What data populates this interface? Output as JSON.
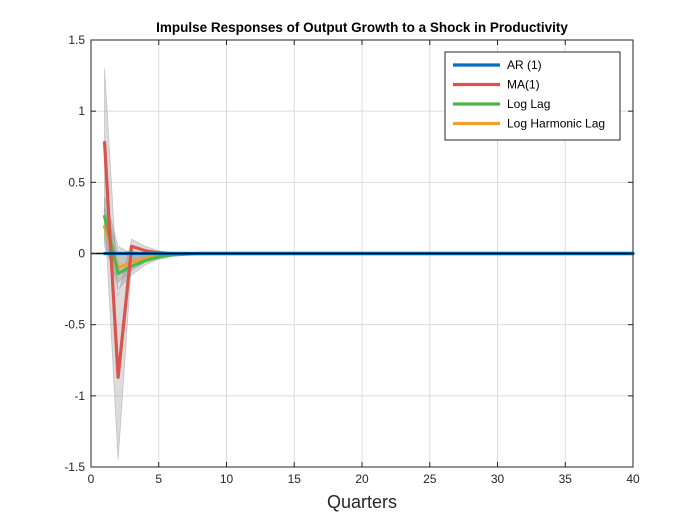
{
  "chart_data": {
    "type": "line",
    "title": "Impulse Responses of Output Growth to a Shock in Productivity",
    "xlabel": "Quarters",
    "ylabel": "",
    "xlim": [
      0,
      40
    ],
    "ylim": [
      -1.5,
      1.5
    ],
    "xticks": [
      "0",
      "5",
      "10",
      "15",
      "20",
      "25",
      "30",
      "35",
      "40"
    ],
    "yticks": [
      "1.5",
      "1",
      "0.5",
      "0",
      "-0.5",
      "-1",
      "-1.5"
    ],
    "grid": true,
    "legend_position": "top-right",
    "zero_line": true,
    "series": [
      {
        "name": "AR (1)",
        "color": "#0072BD",
        "x": [
          1,
          2,
          3,
          4,
          5,
          6,
          7,
          8,
          40
        ],
        "values": [
          0.0,
          0.0,
          0.0,
          0.0,
          0.0,
          0.0,
          0.0,
          0.0,
          0.0
        ],
        "band_lower": [
          0.0,
          0.0,
          0.0,
          0.0,
          0.0,
          0.0,
          0.0,
          0.0,
          0.0
        ],
        "band_upper": [
          0.0,
          0.0,
          0.0,
          0.0,
          0.0,
          0.0,
          0.0,
          0.0,
          0.0
        ]
      },
      {
        "name": "MA(1)",
        "color": "#D9534F",
        "x": [
          1,
          2,
          3,
          4,
          5,
          6,
          7,
          8,
          40
        ],
        "values": [
          0.78,
          -0.87,
          0.05,
          0.02,
          0.005,
          0.0,
          0.0,
          0.0,
          0.0
        ],
        "band_lower": [
          0.3,
          -1.45,
          -0.05,
          -0.02,
          -0.01,
          0.0,
          0.0,
          0.0,
          0.0
        ],
        "band_upper": [
          1.3,
          -0.3,
          0.1,
          0.05,
          0.02,
          0.0,
          0.0,
          0.0,
          0.0
        ]
      },
      {
        "name": "Log Lag",
        "color": "#4DB849",
        "x": [
          1,
          2,
          3,
          4,
          5,
          6,
          7,
          8,
          40
        ],
        "values": [
          0.26,
          -0.14,
          -0.09,
          -0.05,
          -0.025,
          -0.01,
          -0.005,
          0.0,
          0.0
        ],
        "band_lower": [
          0.1,
          -0.25,
          -0.15,
          -0.08,
          -0.04,
          -0.02,
          -0.01,
          0.0,
          0.0
        ],
        "band_upper": [
          0.4,
          0.05,
          0.0,
          0.0,
          0.0,
          0.0,
          0.0,
          0.0,
          0.0
        ]
      },
      {
        "name": "Log Harmonic Lag",
        "color": "#F0A030",
        "x": [
          1,
          2,
          3,
          4,
          5,
          6,
          7,
          8,
          40
        ],
        "values": [
          0.19,
          -0.1,
          -0.06,
          -0.035,
          -0.018,
          -0.008,
          -0.003,
          0.0,
          0.0
        ],
        "band_lower": [
          0.05,
          -0.2,
          -0.12,
          -0.06,
          -0.03,
          -0.015,
          -0.005,
          0.0,
          0.0
        ],
        "band_upper": [
          0.33,
          0.0,
          0.02,
          0.0,
          0.0,
          0.0,
          0.0,
          0.0,
          0.0
        ]
      }
    ]
  }
}
